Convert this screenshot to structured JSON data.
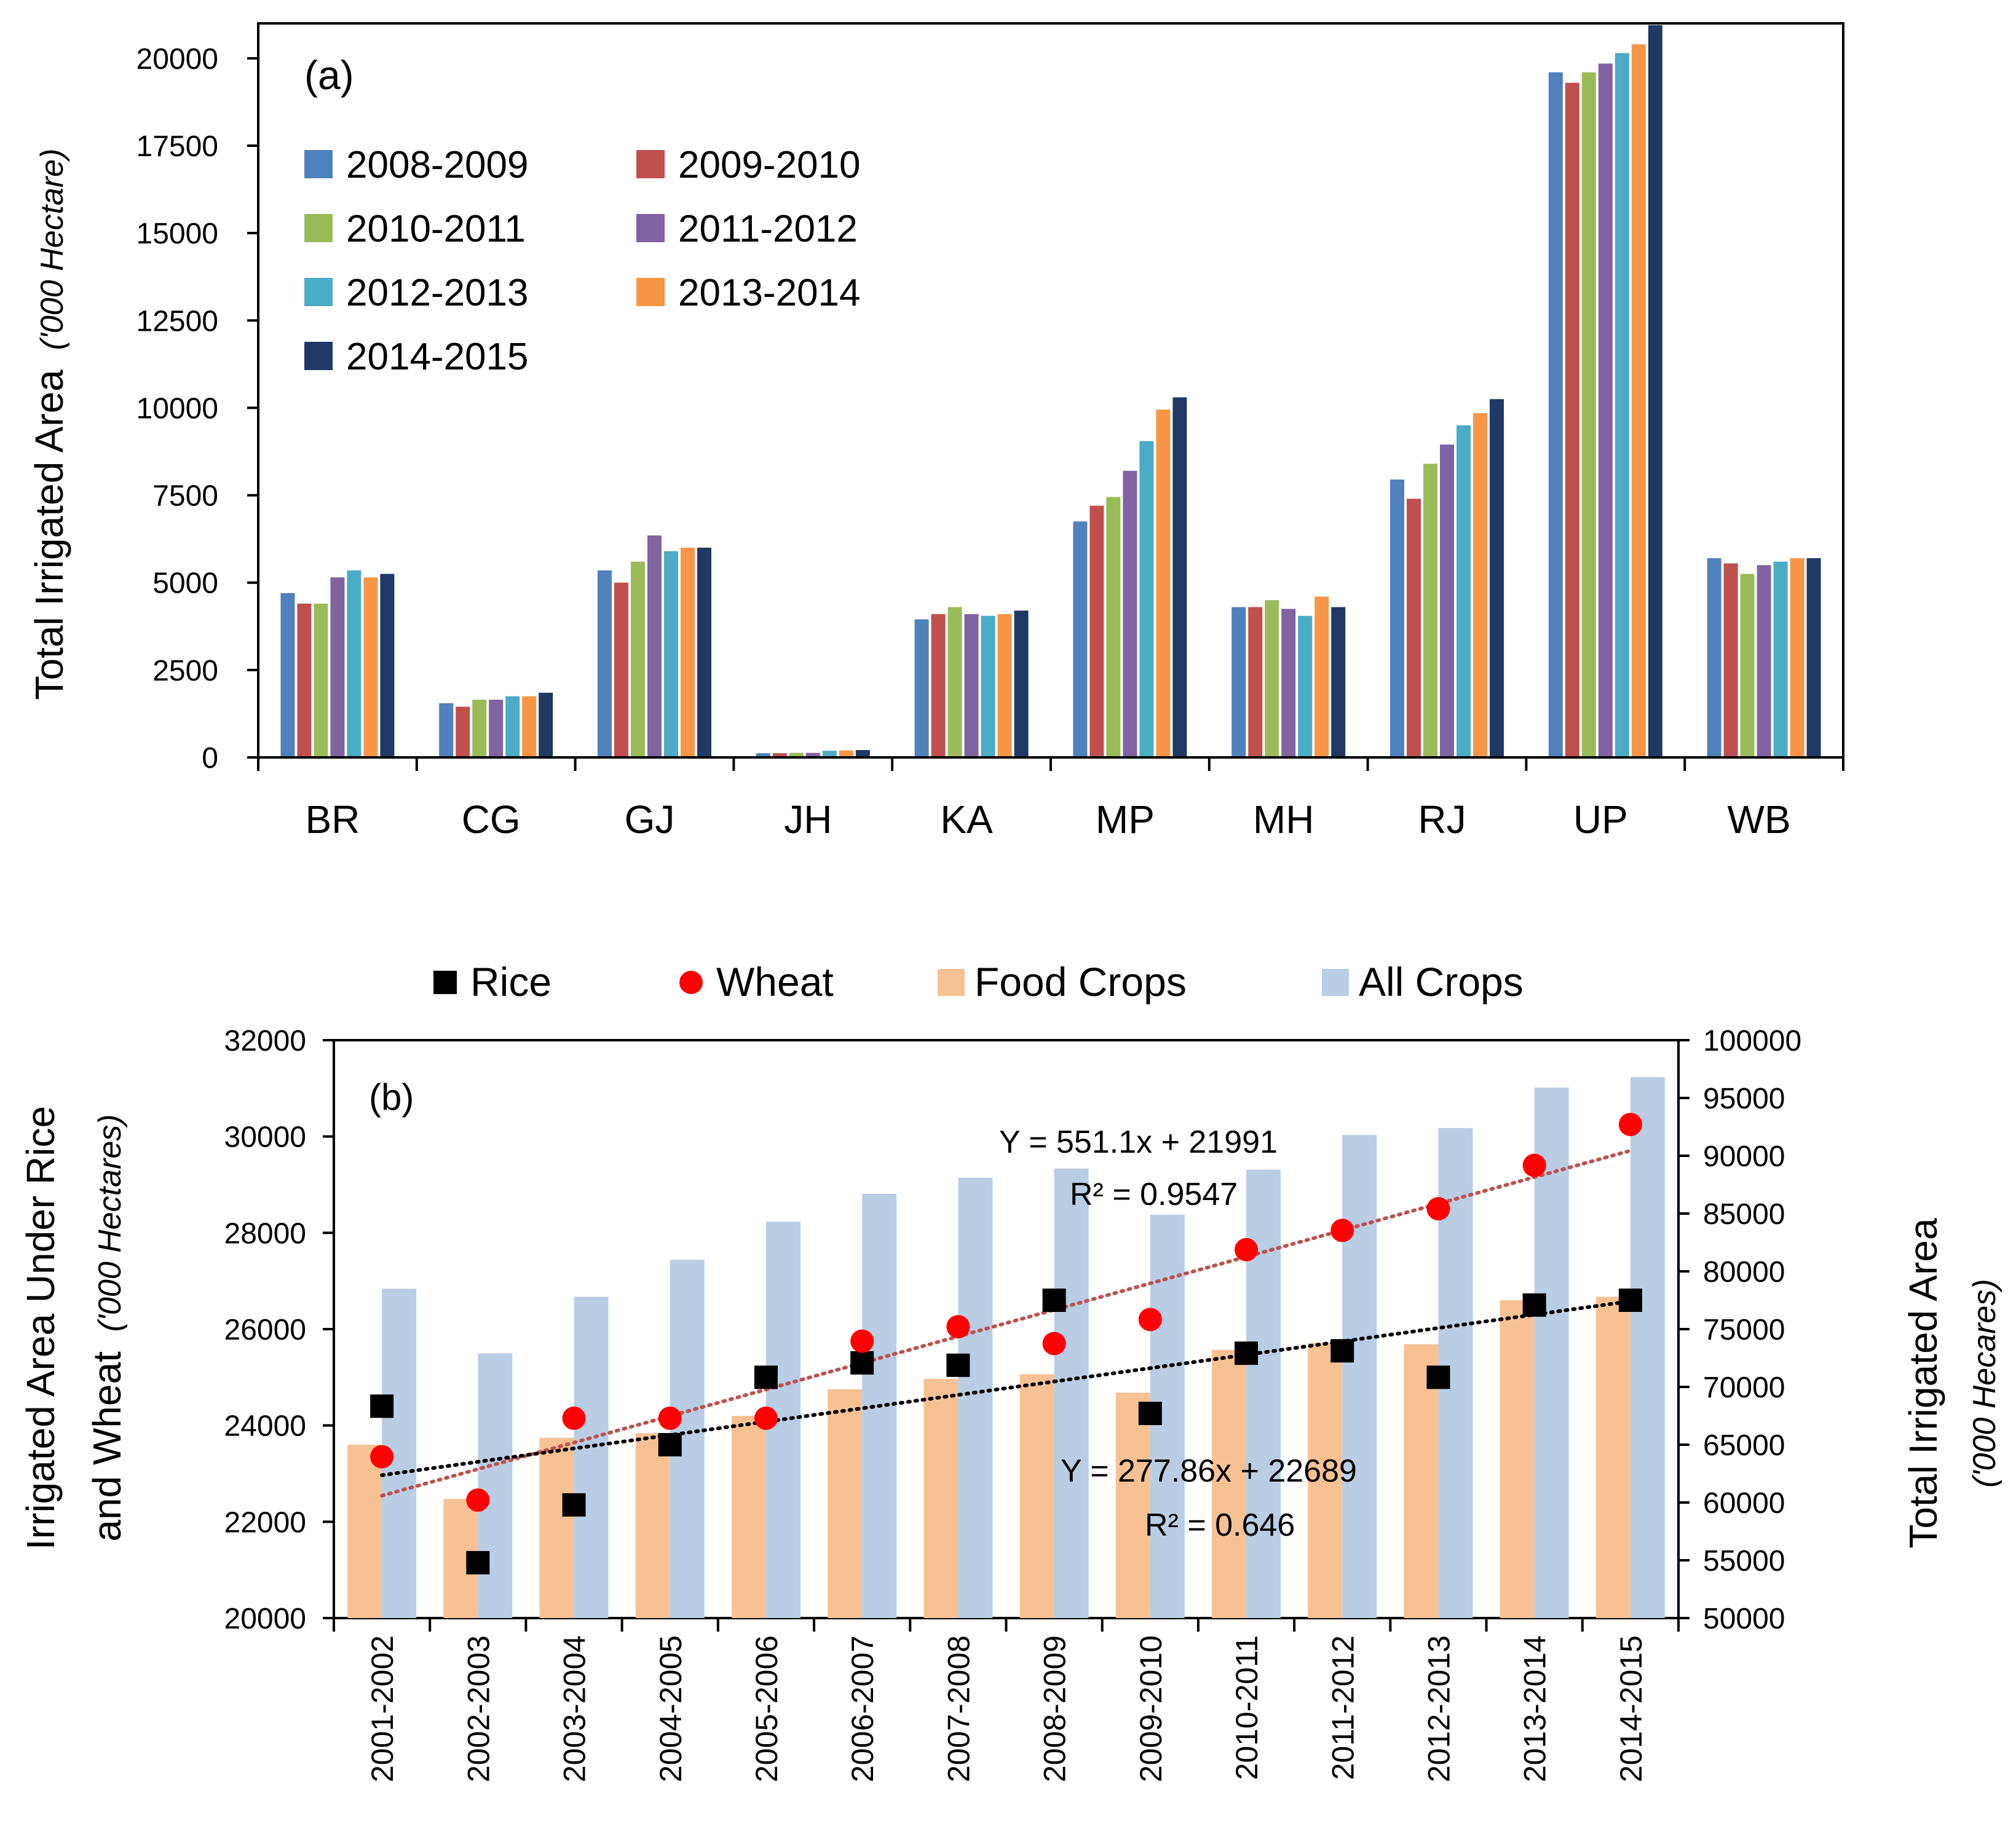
{
  "chart_data": [
    {
      "type": "bar",
      "panel_label": "(a)",
      "ylabel_main": "Total Irrigated Area",
      "ylabel_unit": "('000 Hectare)",
      "categories": [
        "BR",
        "CG",
        "GJ",
        "JH",
        "KA",
        "MP",
        "MH",
        "RJ",
        "UP",
        "WB"
      ],
      "ylim": [
        0,
        21000
      ],
      "yticks": [
        0,
        2500,
        5000,
        7500,
        10000,
        12500,
        15000,
        17500,
        20000
      ],
      "legend_position": "top-left",
      "series": [
        {
          "name": "2008-2009",
          "color": "#4f81bd",
          "values": [
            4700,
            1550,
            5350,
            120,
            3950,
            6750,
            4300,
            7950,
            19600,
            5700
          ]
        },
        {
          "name": "2009-2010",
          "color": "#c0504d",
          "values": [
            4400,
            1450,
            5000,
            120,
            4100,
            7200,
            4300,
            7400,
            19300,
            5550
          ]
        },
        {
          "name": "2010-2011",
          "color": "#9bbb59",
          "values": [
            4400,
            1650,
            5600,
            130,
            4300,
            7450,
            4500,
            8400,
            19600,
            5250
          ]
        },
        {
          "name": "2011-2012",
          "color": "#8064a2",
          "values": [
            5150,
            1650,
            6350,
            130,
            4100,
            8200,
            4250,
            8950,
            19850,
            5500
          ]
        },
        {
          "name": "2012-2013",
          "color": "#4bacc6",
          "values": [
            5350,
            1750,
            5900,
            190,
            4050,
            9050,
            4050,
            9500,
            20150,
            5600
          ]
        },
        {
          "name": "2013-2014",
          "color": "#f79646",
          "values": [
            5150,
            1750,
            6000,
            200,
            4100,
            9950,
            4600,
            9850,
            20400,
            5700
          ]
        },
        {
          "name": "2014-2015",
          "color": "#1f3864",
          "values": [
            5250,
            1850,
            6000,
            210,
            4200,
            10300,
            4300,
            10250,
            20950,
            5700
          ]
        }
      ]
    },
    {
      "type": "bar+scatter",
      "panel_label": "(b)",
      "ylabel_left_line1": "Irrigated Area Under Rice",
      "ylabel_left_line2": "and Wheat",
      "ylabel_left_unit": "('000 Hectares)",
      "ylabel_right": "Total Irrigated Area",
      "ylabel_right_unit": "('000 Hecares)",
      "categories": [
        "2001-2002",
        "2002-2003",
        "2003-2004",
        "2004-2005",
        "2005-2006",
        "2006-2007",
        "2007-2008",
        "2008-2009",
        "2009-2010",
        "2010-2011",
        "2011-2012",
        "2012-2013",
        "2013-2014",
        "2014-2015"
      ],
      "ylim_left": [
        20000,
        32000
      ],
      "yticks_left": [
        20000,
        22000,
        24000,
        26000,
        28000,
        30000,
        32000
      ],
      "ylim_right": [
        50000,
        100000
      ],
      "yticks_right": [
        50000,
        55000,
        60000,
        65000,
        70000,
        75000,
        80000,
        85000,
        90000,
        95000,
        100000
      ],
      "legend_position": "top",
      "bar_series": [
        {
          "name": "Food Crops",
          "color": "#f8c193",
          "axis": "right",
          "values": [
            65000,
            60300,
            65600,
            66000,
            67500,
            69800,
            70700,
            71100,
            69500,
            73200,
            73800,
            73700,
            77500,
            77800
          ]
        },
        {
          "name": "All Crops",
          "color": "#b9cde5",
          "axis": "right",
          "values": [
            78500,
            72900,
            77800,
            81000,
            84300,
            86700,
            88100,
            88900,
            84900,
            88800,
            91800,
            92400,
            95900,
            96800
          ]
        }
      ],
      "scatter_series": [
        {
          "name": "Rice",
          "color": "#000000",
          "marker": "square",
          "axis": "left",
          "values": [
            24400,
            21150,
            22350,
            23600,
            25000,
            25300,
            25250,
            26600,
            24250,
            25500,
            25550,
            25000,
            26500,
            26600
          ]
        },
        {
          "name": "Wheat",
          "color": "#ff0000",
          "marker": "circle",
          "axis": "left",
          "values": [
            23350,
            22450,
            24150,
            24150,
            24150,
            25750,
            26050,
            25700,
            26200,
            27650,
            28050,
            28500,
            29400,
            30250
          ]
        }
      ],
      "trendlines": [
        {
          "series": "Wheat",
          "slope": 551.1,
          "intercept": 21991,
          "color": "#c0504d",
          "equation": "Y = 551.1x + 21991",
          "r2": "R² = 0.9547"
        },
        {
          "series": "Rice",
          "slope": 277.86,
          "intercept": 22689,
          "color": "#000000",
          "equation": "Y = 277.86x + 22689",
          "r2": "R² = 0.646"
        }
      ]
    }
  ]
}
